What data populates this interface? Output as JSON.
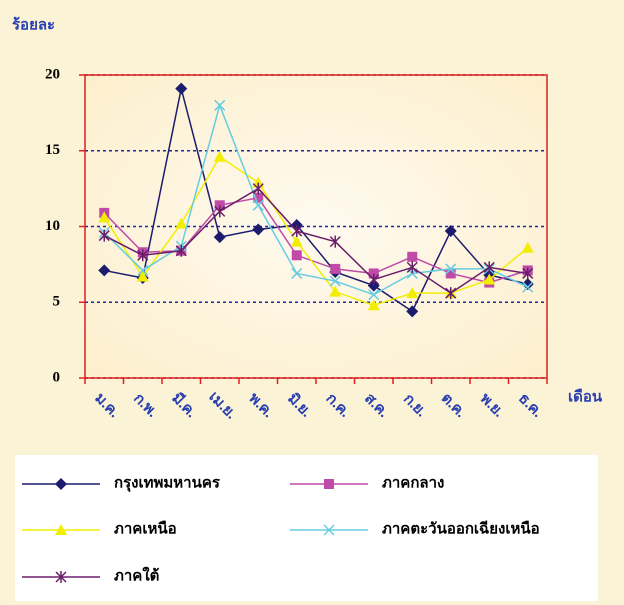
{
  "chart_data": {
    "type": "line",
    "ylabel": "ร้อยละ",
    "xlabel": "เดือน",
    "categories": [
      "ม.ค.",
      "ก.พ.",
      "มี.ค.",
      "เม.ย.",
      "พ.ค.",
      "มิ.ย.",
      "ก.ค.",
      "ส.ค.",
      "ก.ย.",
      "ต.ค.",
      "พ.ย.",
      "ธ.ค."
    ],
    "series": [
      {
        "name": "กรุงเทพมหานคร",
        "color": "#1c1c6e",
        "marker": "diamond",
        "values": [
          7.1,
          6.6,
          19.1,
          9.3,
          9.8,
          10.1,
          7.0,
          6.1,
          4.4,
          9.7,
          6.8,
          6.2
        ]
      },
      {
        "name": "ภาคกลาง",
        "color": "#c04aa8",
        "marker": "square",
        "values": [
          10.9,
          8.3,
          8.4,
          11.4,
          11.9,
          8.1,
          7.2,
          6.9,
          8.0,
          6.9,
          6.3,
          7.1
        ]
      },
      {
        "name": "ภาคเหนือ",
        "color": "#f2ee00",
        "marker": "triangle",
        "values": [
          10.6,
          6.7,
          10.2,
          14.6,
          12.9,
          9.0,
          5.7,
          4.8,
          5.6,
          5.6,
          6.5,
          8.6
        ]
      },
      {
        "name": "ภาคตะวันออกเฉียงเหนือ",
        "color": "#66cde0",
        "marker": "x",
        "values": [
          9.6,
          7.1,
          8.7,
          18.0,
          11.4,
          6.9,
          6.4,
          5.5,
          6.9,
          7.2,
          7.2,
          6.0
        ]
      },
      {
        "name": "ภาคใต้",
        "color": "#6a1e6a",
        "marker": "star",
        "values": [
          9.4,
          8.1,
          8.4,
          11.0,
          12.5,
          9.7,
          9.0,
          6.5,
          7.3,
          5.6,
          7.3,
          6.9
        ]
      }
    ],
    "ylim": [
      0,
      20
    ],
    "yticks": [
      0,
      5,
      10,
      15,
      20
    ],
    "grid": true
  }
}
